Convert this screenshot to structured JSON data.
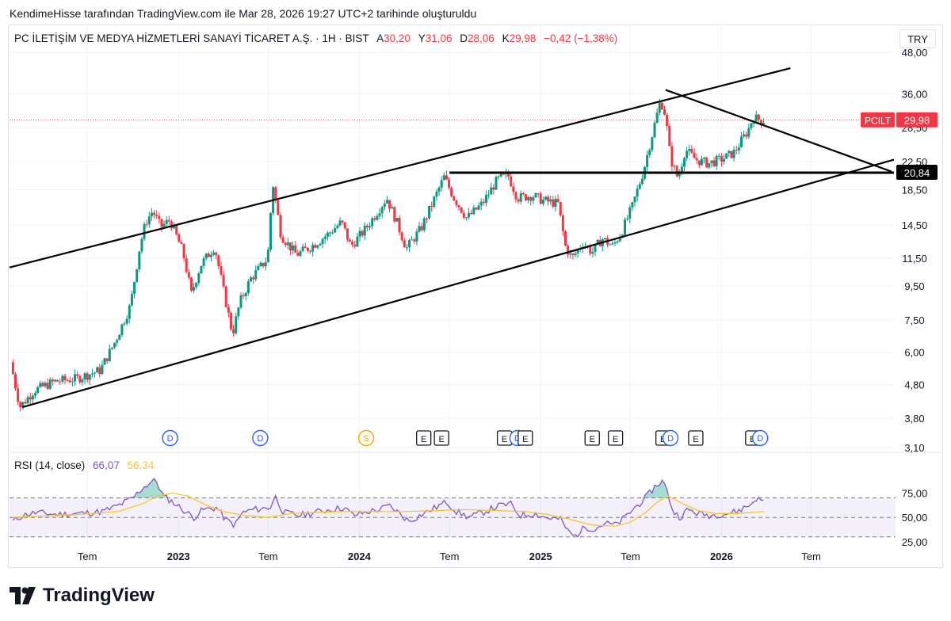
{
  "header": {
    "text": "KendimeHisse tarafından TradingView.com ile Mar 28, 2026 19:27 UTC+2 tarihinde oluşturuldu"
  },
  "legend": {
    "symbol": "PC İLETİŞİM VE MEDYA HİZMETLERİ SANAYİ TİCARET A.Ş. · 1H · BIST",
    "open_label": "A",
    "open": "30,20",
    "high_label": "Y",
    "high": "31,06",
    "low_label": "D",
    "low": "28,06",
    "close_label": "K",
    "close": "29,98",
    "change": "−0,42 (−1,38%)"
  },
  "currency": "TRY",
  "logo": {
    "text": "TradingView"
  },
  "colors": {
    "up": "#089981",
    "down": "#f23645",
    "rsi": "#7e57c2",
    "rsi_ma": "#f7c52b",
    "rsi_band": "#7e57c2"
  },
  "chart_data": [
    {
      "type": "candlestick",
      "title": "",
      "y_scale": "log",
      "y_ticks": [
        "48,00",
        "36,00",
        "28,50",
        "22,50",
        "18,50",
        "14,50",
        "11,50",
        "9,50",
        "7,50",
        "6,00",
        "4,80",
        "3,80",
        "3,10"
      ],
      "y_tick_values": [
        48,
        36,
        28.5,
        22.5,
        18.5,
        14.5,
        11.5,
        9.5,
        7.5,
        6.0,
        4.8,
        3.8,
        3.1
      ],
      "x_ticks": [
        {
          "label": "Tem",
          "date": "2022-07-01",
          "bold": false
        },
        {
          "label": "2023",
          "date": "2023-01-01",
          "bold": true
        },
        {
          "label": "Tem",
          "date": "2023-07-01",
          "bold": false
        },
        {
          "label": "2024",
          "date": "2024-01-01",
          "bold": true
        },
        {
          "label": "Tem",
          "date": "2024-07-01",
          "bold": false
        },
        {
          "label": "2025",
          "date": "2025-01-01",
          "bold": true
        },
        {
          "label": "Tem",
          "date": "2025-07-01",
          "bold": false
        },
        {
          "label": "2026",
          "date": "2026-01-01",
          "bold": true
        },
        {
          "label": "Tem",
          "date": "2026-07-01",
          "bold": false
        }
      ],
      "x_range": [
        "2022-01-25",
        "2026-12-15"
      ],
      "y_range": [
        3.1,
        48
      ],
      "price_path": [
        [
          "2022-02-01",
          5.6
        ],
        [
          "2022-02-20",
          4.1
        ],
        [
          "2022-03-20",
          4.6
        ],
        [
          "2022-05-01",
          4.9
        ],
        [
          "2022-06-15",
          5.0
        ],
        [
          "2022-08-01",
          5.3
        ],
        [
          "2022-09-01",
          6.5
        ],
        [
          "2022-10-01",
          8.3
        ],
        [
          "2022-10-20",
          12.5
        ],
        [
          "2022-11-01",
          14.8
        ],
        [
          "2022-11-15",
          16.0
        ],
        [
          "2022-12-01",
          14.3
        ],
        [
          "2022-12-20",
          15.0
        ],
        [
          "2023-01-15",
          12.0
        ],
        [
          "2023-02-01",
          9.0
        ],
        [
          "2023-02-20",
          11.0
        ],
        [
          "2023-03-20",
          12.5
        ],
        [
          "2023-04-05",
          9.5
        ],
        [
          "2023-04-25",
          6.8
        ],
        [
          "2023-05-10",
          8.5
        ],
        [
          "2023-06-01",
          10.0
        ],
        [
          "2023-07-05",
          11.5
        ],
        [
          "2023-07-15",
          19.5
        ],
        [
          "2023-08-01",
          13.5
        ],
        [
          "2023-09-01",
          11.8
        ],
        [
          "2023-10-01",
          12.5
        ],
        [
          "2023-11-01",
          13.5
        ],
        [
          "2023-12-01",
          14.8
        ],
        [
          "2023-12-20",
          12.5
        ],
        [
          "2024-01-20",
          14.2
        ],
        [
          "2024-02-10",
          15.8
        ],
        [
          "2024-03-01",
          17.5
        ],
        [
          "2024-03-20",
          15.0
        ],
        [
          "2024-04-10",
          12.3
        ],
        [
          "2024-05-10",
          14.2
        ],
        [
          "2024-06-10",
          18.0
        ],
        [
          "2024-06-25",
          20.2
        ],
        [
          "2024-07-15",
          17.5
        ],
        [
          "2024-08-10",
          15.2
        ],
        [
          "2024-09-10",
          16.8
        ],
        [
          "2024-10-10",
          19.8
        ],
        [
          "2024-11-01",
          20.5
        ],
        [
          "2024-11-20",
          17.5
        ],
        [
          "2024-12-20",
          17.8
        ],
        [
          "2025-01-10",
          17.2
        ],
        [
          "2025-02-10",
          16.8
        ],
        [
          "2025-02-25",
          12.5
        ],
        [
          "2025-03-10",
          11.5
        ],
        [
          "2025-04-01",
          12.8
        ],
        [
          "2025-04-20",
          12.0
        ],
        [
          "2025-05-10",
          13.2
        ],
        [
          "2025-06-01",
          12.5
        ],
        [
          "2025-06-20",
          14.0
        ],
        [
          "2025-07-10",
          16.5
        ],
        [
          "2025-08-01",
          21.0
        ],
        [
          "2025-08-20",
          27.5
        ],
        [
          "2025-09-05",
          34.5
        ],
        [
          "2025-09-15",
          31.0
        ],
        [
          "2025-09-25",
          23.0
        ],
        [
          "2025-10-10",
          20.0
        ],
        [
          "2025-10-25",
          24.5
        ],
        [
          "2025-11-15",
          22.8
        ],
        [
          "2025-12-10",
          22.2
        ],
        [
          "2026-01-10",
          23.0
        ],
        [
          "2026-02-01",
          24.0
        ],
        [
          "2026-02-15",
          26.0
        ],
        [
          "2026-03-01",
          28.0
        ],
        [
          "2026-03-10",
          30.5
        ],
        [
          "2026-03-28",
          29.98
        ]
      ],
      "last_price": {
        "symbol": "PCILT",
        "value": "29,98"
      },
      "level_label": "20,84",
      "level_value": 20.84,
      "trendlines": [
        {
          "name": "channel-upper",
          "from": [
            "2022-01-25",
            10.8
          ],
          "to": [
            "2026-05-20",
            43.0
          ]
        },
        {
          "name": "channel-lower",
          "from": [
            "2022-02-20",
            4.1
          ],
          "to": [
            "2026-12-15",
            22.8
          ]
        },
        {
          "name": "horizontal-resistance",
          "from": [
            "2024-07-01",
            20.84
          ],
          "to": [
            "2026-12-15",
            20.84
          ]
        },
        {
          "name": "descending-trendline",
          "from": [
            "2025-09-10",
            37.0
          ],
          "to": [
            "2026-12-10",
            21.0
          ]
        }
      ],
      "events": [
        {
          "type": "D",
          "date": "2022-12-15"
        },
        {
          "type": "D",
          "date": "2023-06-15"
        },
        {
          "type": "S",
          "date": "2024-01-15"
        },
        {
          "type": "E",
          "date": "2024-05-10"
        },
        {
          "type": "E",
          "date": "2024-06-15"
        },
        {
          "type": "E",
          "date": "2024-10-20"
        },
        {
          "type": "D",
          "date": "2024-11-15"
        },
        {
          "type": "E",
          "date": "2024-12-01"
        },
        {
          "type": "E",
          "date": "2025-04-15"
        },
        {
          "type": "E",
          "date": "2025-06-01"
        },
        {
          "type": "E",
          "date": "2025-09-05"
        },
        {
          "type": "D",
          "date": "2025-09-20"
        },
        {
          "type": "E",
          "date": "2025-11-10"
        },
        {
          "type": "E",
          "date": "2026-03-05"
        },
        {
          "type": "D",
          "date": "2026-03-20"
        }
      ]
    },
    {
      "type": "line",
      "title": "RSI (14, close)",
      "series": [
        {
          "name": "RSI",
          "value_label": "66,07"
        },
        {
          "name": "MA",
          "value_label": "56,34"
        }
      ],
      "y_ticks": [
        "75,00",
        "50,00",
        "25,00"
      ],
      "y_tick_values": [
        75,
        50,
        25
      ],
      "bands": [
        70,
        50,
        30
      ],
      "y_range": [
        20,
        95
      ],
      "rsi_path": [
        [
          "2022-02-01",
          46
        ],
        [
          "2022-02-20",
          52
        ],
        [
          "2022-03-20",
          55
        ],
        [
          "2022-05-01",
          53
        ],
        [
          "2022-06-15",
          54
        ],
        [
          "2022-08-01",
          56
        ],
        [
          "2022-09-01",
          62
        ],
        [
          "2022-10-01",
          70
        ],
        [
          "2022-10-20",
          80
        ],
        [
          "2022-11-05",
          86
        ],
        [
          "2022-11-15",
          90
        ],
        [
          "2022-12-01",
          72
        ],
        [
          "2022-12-20",
          66
        ],
        [
          "2023-01-15",
          56
        ],
        [
          "2023-02-01",
          50
        ],
        [
          "2023-02-20",
          58
        ],
        [
          "2023-03-20",
          60
        ],
        [
          "2023-04-05",
          48
        ],
        [
          "2023-04-25",
          42
        ],
        [
          "2023-05-10",
          55
        ],
        [
          "2023-06-01",
          58
        ],
        [
          "2023-07-05",
          60
        ],
        [
          "2023-07-15",
          72
        ],
        [
          "2023-08-01",
          55
        ],
        [
          "2023-09-01",
          52
        ],
        [
          "2023-10-01",
          55
        ],
        [
          "2023-11-01",
          58
        ],
        [
          "2023-12-01",
          60
        ],
        [
          "2023-12-20",
          52
        ],
        [
          "2024-01-20",
          56
        ],
        [
          "2024-02-10",
          58
        ],
        [
          "2024-03-01",
          62
        ],
        [
          "2024-03-20",
          55
        ],
        [
          "2024-04-10",
          46
        ],
        [
          "2024-05-10",
          54
        ],
        [
          "2024-06-10",
          62
        ],
        [
          "2024-06-25",
          66
        ],
        [
          "2024-07-15",
          56
        ],
        [
          "2024-08-10",
          50
        ],
        [
          "2024-09-10",
          56
        ],
        [
          "2024-10-10",
          62
        ],
        [
          "2024-11-01",
          64
        ],
        [
          "2024-11-20",
          52
        ],
        [
          "2024-12-20",
          54
        ],
        [
          "2025-01-10",
          50
        ],
        [
          "2025-02-10",
          48
        ],
        [
          "2025-02-25",
          36
        ],
        [
          "2025-03-10",
          30
        ],
        [
          "2025-04-01",
          40
        ],
        [
          "2025-04-20",
          38
        ],
        [
          "2025-05-10",
          44
        ],
        [
          "2025-06-01",
          42
        ],
        [
          "2025-06-20",
          50
        ],
        [
          "2025-07-10",
          60
        ],
        [
          "2025-08-01",
          70
        ],
        [
          "2025-08-20",
          82
        ],
        [
          "2025-09-05",
          88
        ],
        [
          "2025-09-15",
          74
        ],
        [
          "2025-09-25",
          56
        ],
        [
          "2025-10-10",
          50
        ],
        [
          "2025-10-25",
          58
        ],
        [
          "2025-11-15",
          54
        ],
        [
          "2025-12-10",
          52
        ],
        [
          "2026-01-10",
          54
        ],
        [
          "2026-02-01",
          56
        ],
        [
          "2026-02-15",
          60
        ],
        [
          "2026-03-01",
          63
        ],
        [
          "2026-03-10",
          70
        ],
        [
          "2026-03-28",
          66
        ]
      ],
      "rsi_ma_path": [
        [
          "2022-02-01",
          50
        ],
        [
          "2022-06-15",
          53
        ],
        [
          "2022-09-01",
          56
        ],
        [
          "2022-10-20",
          64
        ],
        [
          "2022-11-20",
          72
        ],
        [
          "2022-12-20",
          75
        ],
        [
          "2023-01-20",
          72
        ],
        [
          "2023-02-20",
          64
        ],
        [
          "2023-04-01",
          56
        ],
        [
          "2023-05-15",
          52
        ],
        [
          "2023-07-01",
          50
        ],
        [
          "2023-08-15",
          54
        ],
        [
          "2023-10-01",
          55
        ],
        [
          "2023-12-01",
          56
        ],
        [
          "2024-02-01",
          56
        ],
        [
          "2024-04-01",
          56
        ],
        [
          "2024-06-01",
          57
        ],
        [
          "2024-08-01",
          58
        ],
        [
          "2024-10-01",
          57
        ],
        [
          "2024-12-01",
          56
        ],
        [
          "2025-01-15",
          53
        ],
        [
          "2025-03-01",
          48
        ],
        [
          "2025-04-15",
          42
        ],
        [
          "2025-06-01",
          41
        ],
        [
          "2025-07-01",
          45
        ],
        [
          "2025-08-01",
          55
        ],
        [
          "2025-08-25",
          66
        ],
        [
          "2025-09-15",
          72
        ],
        [
          "2025-10-15",
          64
        ],
        [
          "2025-11-15",
          57
        ],
        [
          "2025-12-20",
          54
        ],
        [
          "2026-02-01",
          54
        ],
        [
          "2026-03-28",
          56
        ]
      ]
    }
  ]
}
